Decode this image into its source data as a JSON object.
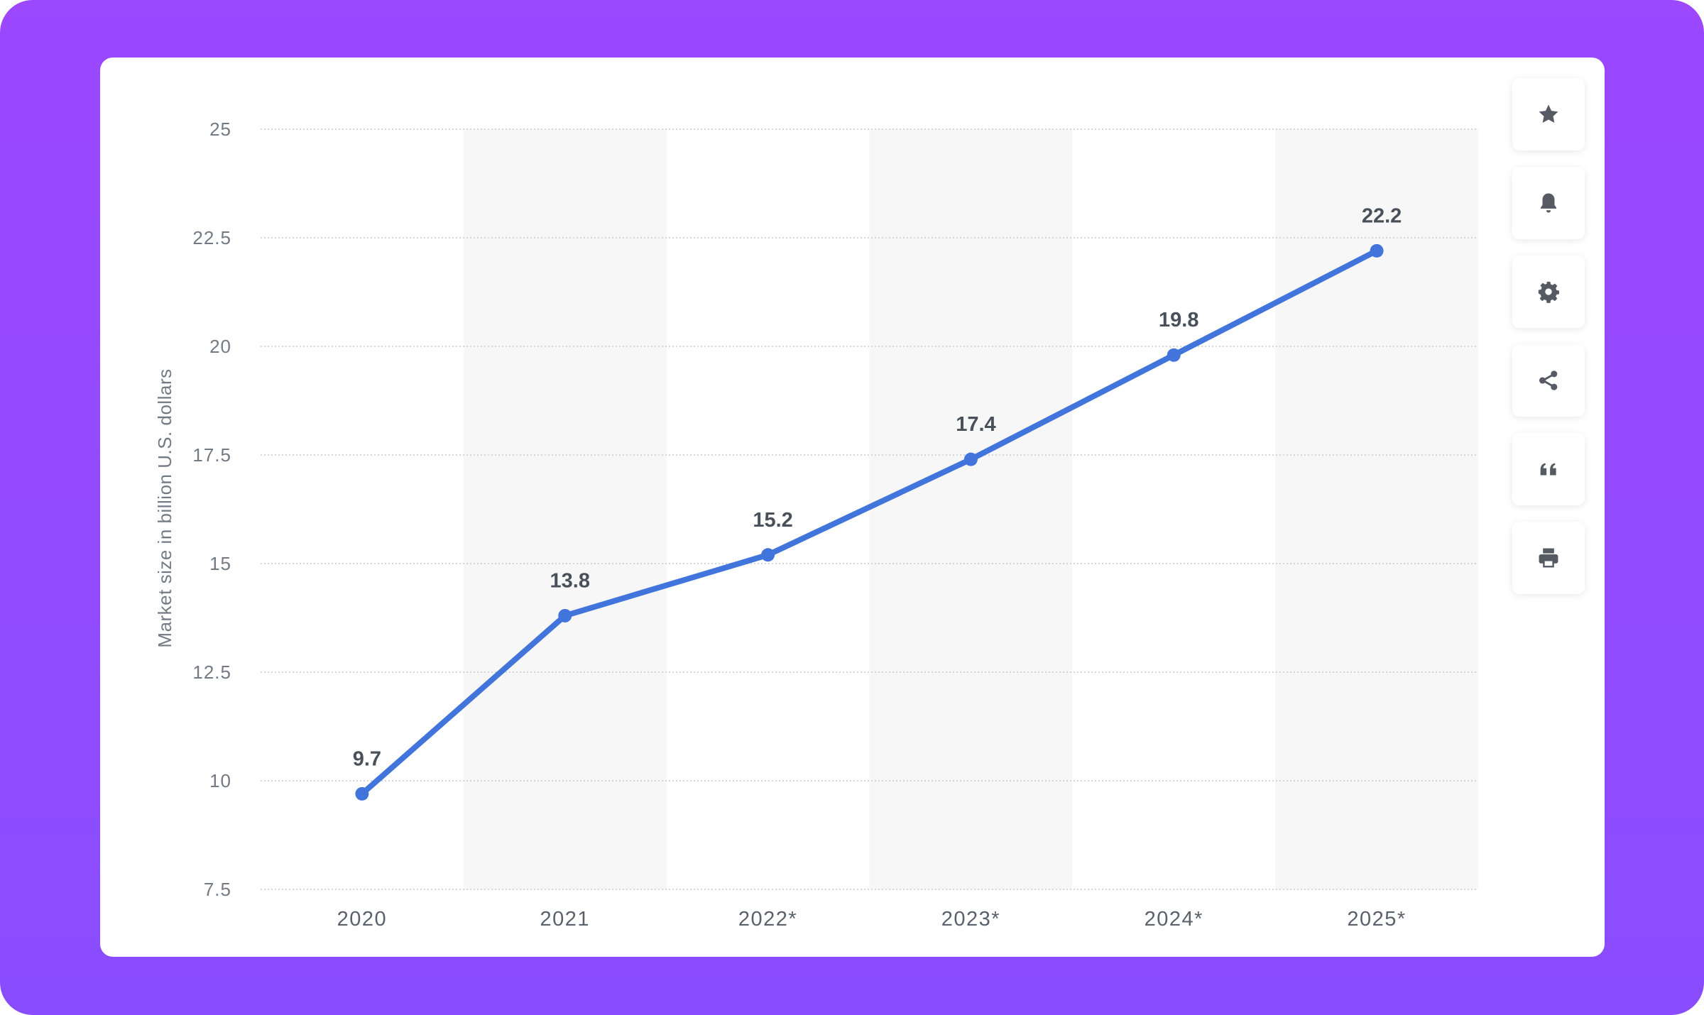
{
  "colors": {
    "background": "#9b48ff",
    "card": "#ffffff",
    "line": "#4175db",
    "band": "#f7f7f7",
    "grid": "#c5c8cd",
    "icon": "#555a63"
  },
  "toolbar": [
    {
      "name": "bookmark-button",
      "icon": "star-icon"
    },
    {
      "name": "notification-button",
      "icon": "bell-icon"
    },
    {
      "name": "settings-button",
      "icon": "gear-icon"
    },
    {
      "name": "share-button",
      "icon": "share-icon"
    },
    {
      "name": "cite-button",
      "icon": "quote-icon"
    },
    {
      "name": "print-button",
      "icon": "printer-icon"
    }
  ],
  "chart_data": {
    "type": "line",
    "ylabel": "Market size in billion U.S. dollars",
    "xlabel": "",
    "categories": [
      "2020",
      "2021",
      "2022*",
      "2023*",
      "2024*",
      "2025*"
    ],
    "series": [
      {
        "values": [
          9.7,
          13.8,
          15.2,
          17.4,
          19.8,
          22.2
        ]
      }
    ],
    "data_labels": [
      "9.7",
      "13.8",
      "15.2",
      "17.4",
      "19.8",
      "22.2"
    ],
    "ylim": [
      7.5,
      25
    ],
    "yticks": [
      "7.5",
      "10",
      "12.5",
      "15",
      "17.5",
      "20",
      "22.5",
      "25"
    ],
    "grid": true,
    "grid_style": "dotted-horizontal",
    "alternating_column_bands": true,
    "legend": "none"
  }
}
